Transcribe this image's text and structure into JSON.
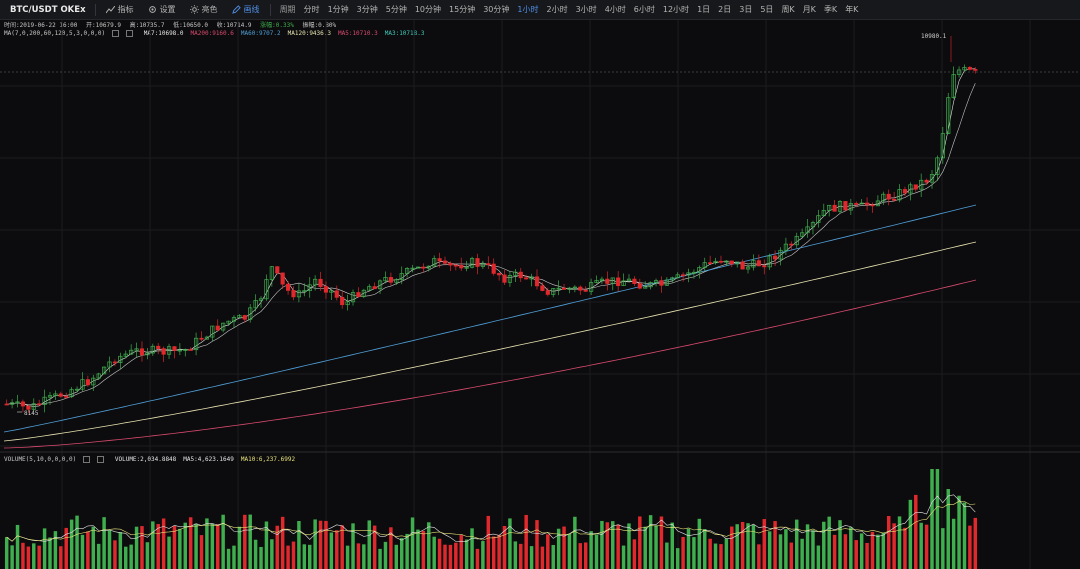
{
  "toolbar": {
    "symbol": "BTC/USDT OKEx",
    "indicators_label": "指标",
    "settings_label": "设置",
    "theme_label": "亮色",
    "draw_label": "画线",
    "period_label": "周期",
    "periods": [
      "分时",
      "1分钟",
      "3分钟",
      "5分钟",
      "10分钟",
      "15分钟",
      "30分钟",
      "1小时",
      "2小时",
      "3小时",
      "4小时",
      "6小时",
      "12小时",
      "1日",
      "2日",
      "3日",
      "5日",
      "周K",
      "月K",
      "季K",
      "年K"
    ],
    "active_period_index": 7
  },
  "info": {
    "time": "时间:2019-06-22 16:00",
    "open": "开:10679.9",
    "high": "高:10735.7",
    "low": "低:10650.0",
    "close": "收:10714.9",
    "change_pct": "涨幅:0.33%",
    "amplitude": "振幅:0.80%"
  },
  "ma_legend": {
    "params": "MA(7,0,200,60,120,5,3,0,0,0)",
    "items": [
      {
        "text": "MA7:10698.0",
        "color": "#e6e6e6"
      },
      {
        "text": "MA200:9160.6",
        "color": "#d94a6e"
      },
      {
        "text": "MA60:9707.2",
        "color": "#4f9fd8"
      },
      {
        "text": "MA120:9436.3",
        "color": "#e8e3b0"
      },
      {
        "text": "MA5:10710.3",
        "color": "#d94a6e"
      },
      {
        "text": "MA3:10718.3",
        "color": "#40c8b8"
      }
    ]
  },
  "volume_legend": {
    "params": "VOLUME(5,10,0,0,0,0)",
    "items": [
      {
        "text": "VOLUME:2,034.8848",
        "color": "#e6e6e6"
      },
      {
        "text": "MA5:4,623.1649",
        "color": "#e6e6e6"
      },
      {
        "text": "MA10:6,237.6992",
        "color": "#e8e37a"
      }
    ]
  },
  "price_marks": {
    "high_label": "10980.1",
    "low_label": "8145"
  },
  "colors": {
    "up": "#3fae4e",
    "down": "#e0292d",
    "ma60": "#4f9fd8",
    "ma120": "#e8e3b0",
    "ma200": "#d94a6e",
    "accent": "#4f8fe8"
  }
}
